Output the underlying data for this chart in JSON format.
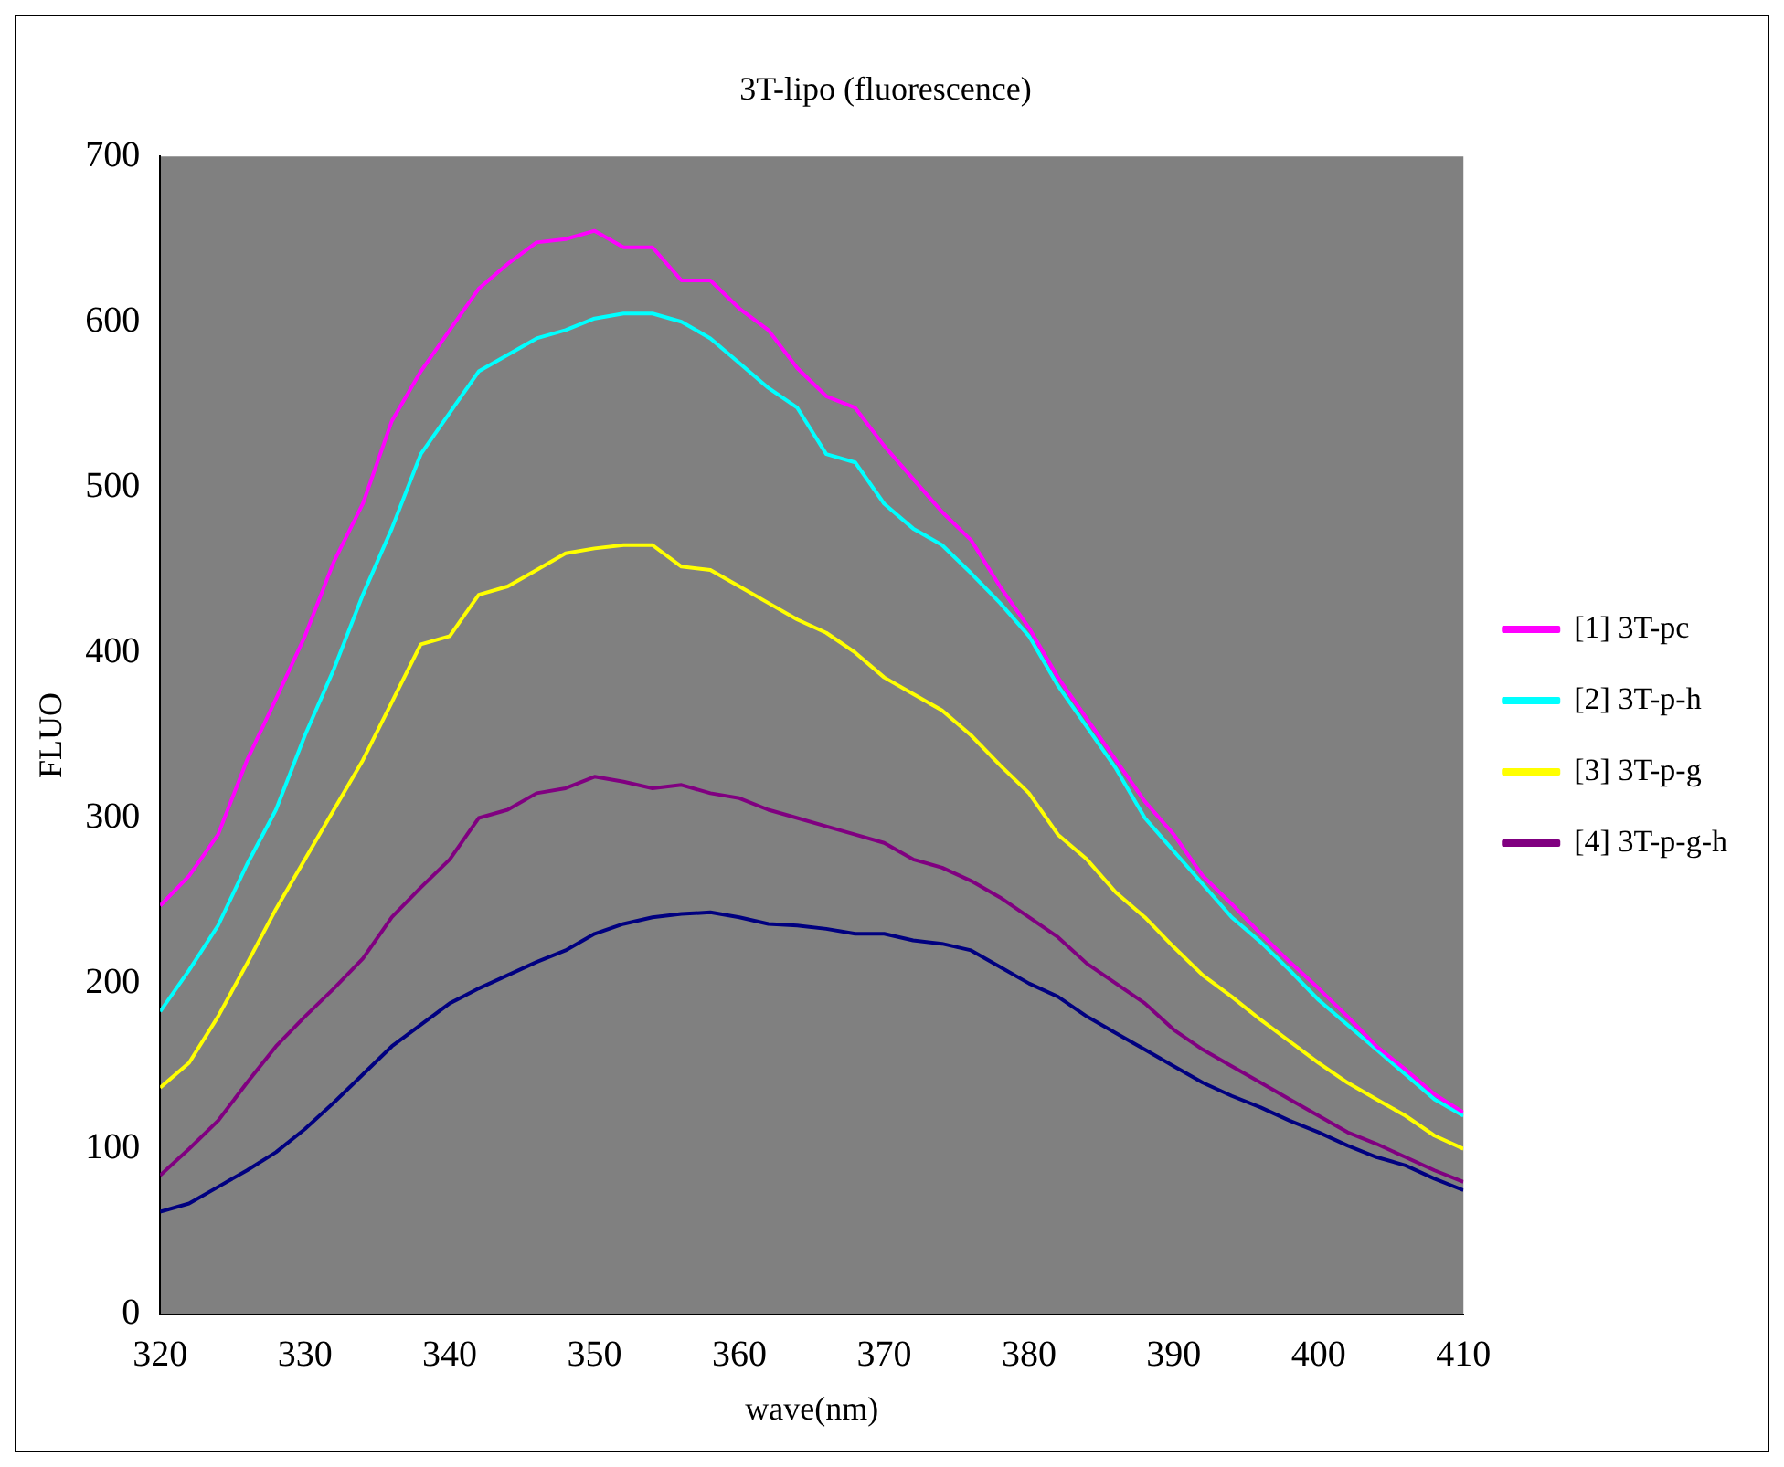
{
  "chart_data": {
    "type": "line",
    "title": "3T-lipo (fluorescence)",
    "xlabel": "wave(nm)",
    "ylabel": "FLUO",
    "x": [
      320,
      322,
      324,
      326,
      328,
      330,
      332,
      334,
      336,
      338,
      340,
      342,
      344,
      346,
      348,
      350,
      352,
      354,
      356,
      358,
      360,
      362,
      364,
      366,
      368,
      370,
      372,
      374,
      376,
      378,
      380,
      382,
      384,
      386,
      388,
      390,
      392,
      394,
      396,
      398,
      400,
      402,
      404,
      406,
      408,
      410
    ],
    "xlim": [
      320,
      410
    ],
    "xticks": [
      320,
      330,
      340,
      350,
      360,
      370,
      380,
      390,
      400,
      410
    ],
    "ylim": [
      0,
      700
    ],
    "yticks": [
      0,
      100,
      200,
      300,
      400,
      500,
      600,
      700
    ],
    "grid": false,
    "legend": "right",
    "marker": "none",
    "line_style": "solid",
    "series": [
      {
        "name": "[1] 3T-pc",
        "color": "#ff00ff",
        "values": [
          247,
          265,
          290,
          335,
          372,
          410,
          455,
          490,
          540,
          570,
          595,
          620,
          635,
          648,
          650,
          655,
          645,
          645,
          625,
          625,
          608,
          595,
          572,
          555,
          548,
          525,
          505,
          485,
          468,
          440,
          415,
          385,
          360,
          335,
          310,
          290,
          265,
          248,
          230,
          213,
          197,
          180,
          162,
          148,
          133,
          122
        ]
      },
      {
        "name": "[2] 3T-p-h",
        "color": "#00ffff",
        "values": [
          183,
          208,
          235,
          272,
          305,
          350,
          390,
          435,
          475,
          520,
          545,
          570,
          580,
          590,
          595,
          602,
          605,
          605,
          600,
          590,
          575,
          560,
          548,
          520,
          515,
          490,
          475,
          465,
          448,
          430,
          410,
          380,
          355,
          330,
          300,
          280,
          260,
          240,
          225,
          208,
          190,
          175,
          160,
          145,
          130,
          120
        ]
      },
      {
        "name": "[3] 3T-p-g",
        "color": "#ffff00",
        "values": [
          137,
          152,
          180,
          212,
          245,
          275,
          305,
          335,
          370,
          405,
          410,
          435,
          440,
          450,
          460,
          463,
          465,
          465,
          452,
          450,
          440,
          430,
          420,
          412,
          400,
          385,
          375,
          365,
          350,
          332,
          315,
          290,
          275,
          255,
          240,
          222,
          205,
          192,
          178,
          165,
          152,
          140,
          130,
          120,
          108,
          100
        ]
      },
      {
        "name": "[4] 3T-p-g-h",
        "color": "#800080",
        "values": [
          84,
          100,
          117,
          140,
          162,
          180,
          197,
          215,
          240,
          258,
          275,
          300,
          305,
          315,
          318,
          325,
          322,
          318,
          320,
          315,
          312,
          305,
          300,
          295,
          290,
          285,
          275,
          270,
          262,
          252,
          240,
          228,
          212,
          200,
          188,
          172,
          160,
          150,
          140,
          130,
          120,
          110,
          103,
          95,
          87,
          80
        ]
      },
      {
        "color": "#000080",
        "values": [
          62,
          67,
          77,
          87,
          98,
          112,
          128,
          145,
          162,
          175,
          188,
          197,
          205,
          213,
          220,
          230,
          236,
          240,
          242,
          243,
          240,
          236,
          235,
          233,
          230,
          230,
          226,
          224,
          220,
          210,
          200,
          192,
          180,
          170,
          160,
          150,
          140,
          132,
          125,
          117,
          110,
          102,
          95,
          90,
          82,
          75
        ]
      }
    ]
  }
}
